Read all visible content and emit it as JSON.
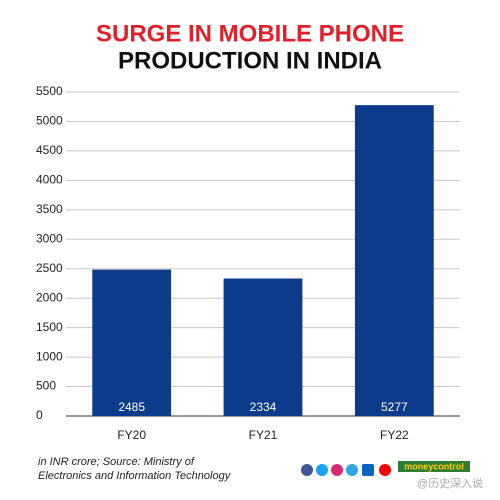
{
  "chart_data": {
    "type": "bar",
    "title": [
      "SURGE IN MOBILE PHONE",
      "PRODUCTION IN INDIA"
    ],
    "categories": [
      "FY20",
      "FY21",
      "FY22"
    ],
    "values": [
      2485,
      2334,
      5277
    ],
    "color": "#0d3b8c",
    "ylim": [
      0,
      5500
    ],
    "yticks": [
      0,
      500,
      1000,
      1500,
      2000,
      2500,
      3000,
      3500,
      4000,
      4500,
      5000,
      5500
    ],
    "grid": true,
    "note": [
      "in INR crore; Source: Ministry of",
      "Electronics and Information Technology"
    ],
    "brand": "moneycontrol",
    "watermark": "@历史深入说"
  }
}
